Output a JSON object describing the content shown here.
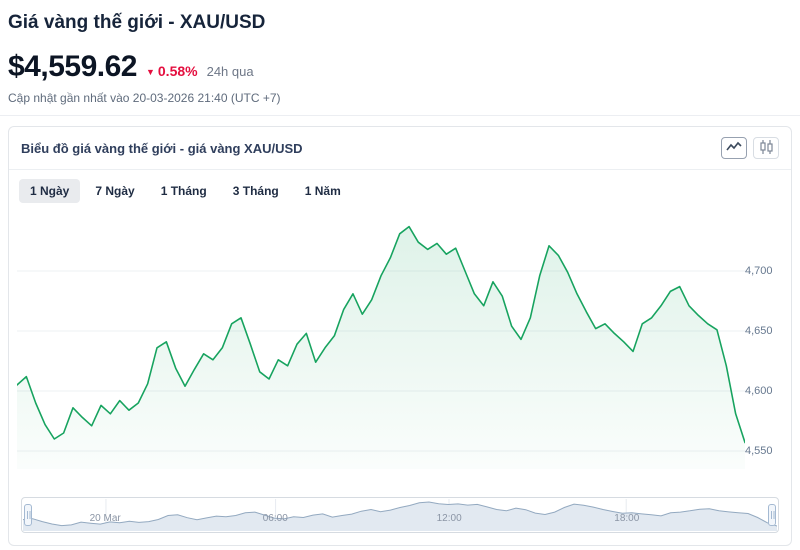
{
  "header": {
    "title": "Giá vàng thế giới - XAU/USD",
    "price": "$4,559.62",
    "change_icon": "▼",
    "change": "0.58%",
    "change_period": "24h qua",
    "updated": "Cập nhật gần nhất vào 20-03-2026 21:40 (UTC +7)"
  },
  "card": {
    "chart_title": "Biểu đồ giá vàng thế giới - giá vàng XAU/USD",
    "icons": [
      "line-chart-icon",
      "candlestick-icon"
    ],
    "tabs": [
      {
        "label": "1 Ngày",
        "active": true
      },
      {
        "label": "7 Ngày",
        "active": false
      },
      {
        "label": "1 Tháng",
        "active": false
      },
      {
        "label": "3 Tháng",
        "active": false
      },
      {
        "label": "1 Năm",
        "active": false
      }
    ]
  },
  "chart_data": {
    "type": "area",
    "title": "Biểu đồ giá vàng thế giới - giá vàng XAU/USD",
    "series_name": "XAU/USD",
    "period": "1 Ngày",
    "ylim": [
      4535,
      4750
    ],
    "yticks": [
      4700,
      4650,
      4600,
      4550
    ],
    "ytick_labels": [
      "4,700",
      "4,650",
      "4,600",
      "4,550"
    ],
    "line_color": "#17a35f",
    "grid_color": "#edf0f3",
    "values": [
      4605,
      4612,
      4590,
      4572,
      4560,
      4565,
      4586,
      4578,
      4571,
      4588,
      4581,
      4592,
      4584,
      4590,
      4606,
      4636,
      4641,
      4619,
      4604,
      4618,
      4631,
      4626,
      4636,
      4656,
      4661,
      4639,
      4616,
      4610,
      4626,
      4621,
      4639,
      4648,
      4624,
      4636,
      4646,
      4668,
      4681,
      4664,
      4676,
      4696,
      4711,
      4731,
      4737,
      4724,
      4718,
      4723,
      4714,
      4719,
      4700,
      4681,
      4671,
      4691,
      4679,
      4654,
      4643,
      4661,
      4696,
      4721,
      4713,
      4699,
      4681,
      4666,
      4652,
      4656,
      4648,
      4641,
      4633,
      4656,
      4661,
      4671,
      4683,
      4687,
      4671,
      4663,
      4656,
      4651,
      4621,
      4581,
      4557
    ],
    "last_value": 4559.62,
    "navigator": {
      "line_color": "#93a9c0",
      "fill_color": "#e2e9f1",
      "grid_color": "#e7ebf0",
      "labels": [
        {
          "text": "20 Mar",
          "pos": 0.11
        },
        {
          "text": "06:00",
          "pos": 0.335
        },
        {
          "text": "12:00",
          "pos": 0.565
        },
        {
          "text": "18:00",
          "pos": 0.8
        }
      ]
    }
  }
}
